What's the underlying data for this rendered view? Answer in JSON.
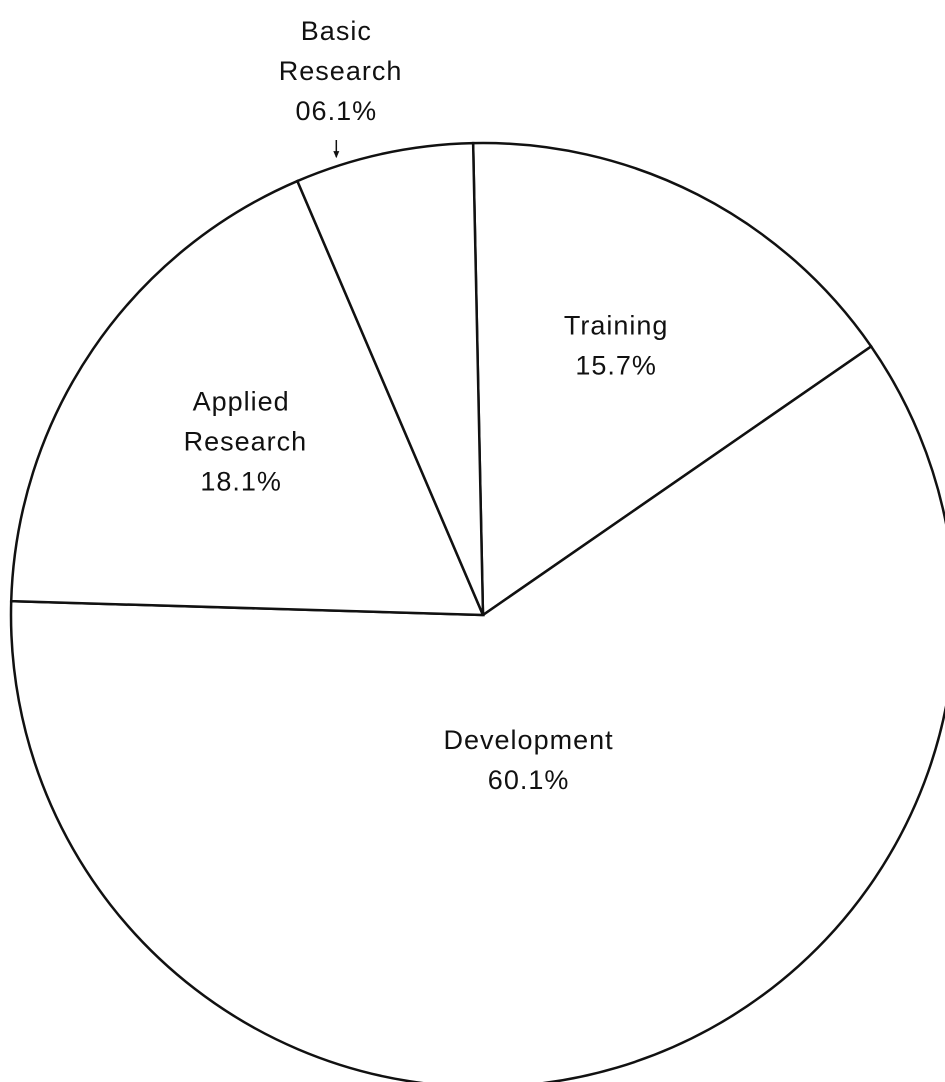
{
  "chart_data": {
    "type": "pie",
    "categories": [
      "Training",
      "Development",
      "Applied Research",
      "Basic Research"
    ],
    "values": [
      15.7,
      60.1,
      18.1,
      6.1
    ],
    "value_labels": [
      "15.7%",
      "60.1%",
      "18.1%",
      "06.1%"
    ],
    "color": "#ffffff"
  }
}
